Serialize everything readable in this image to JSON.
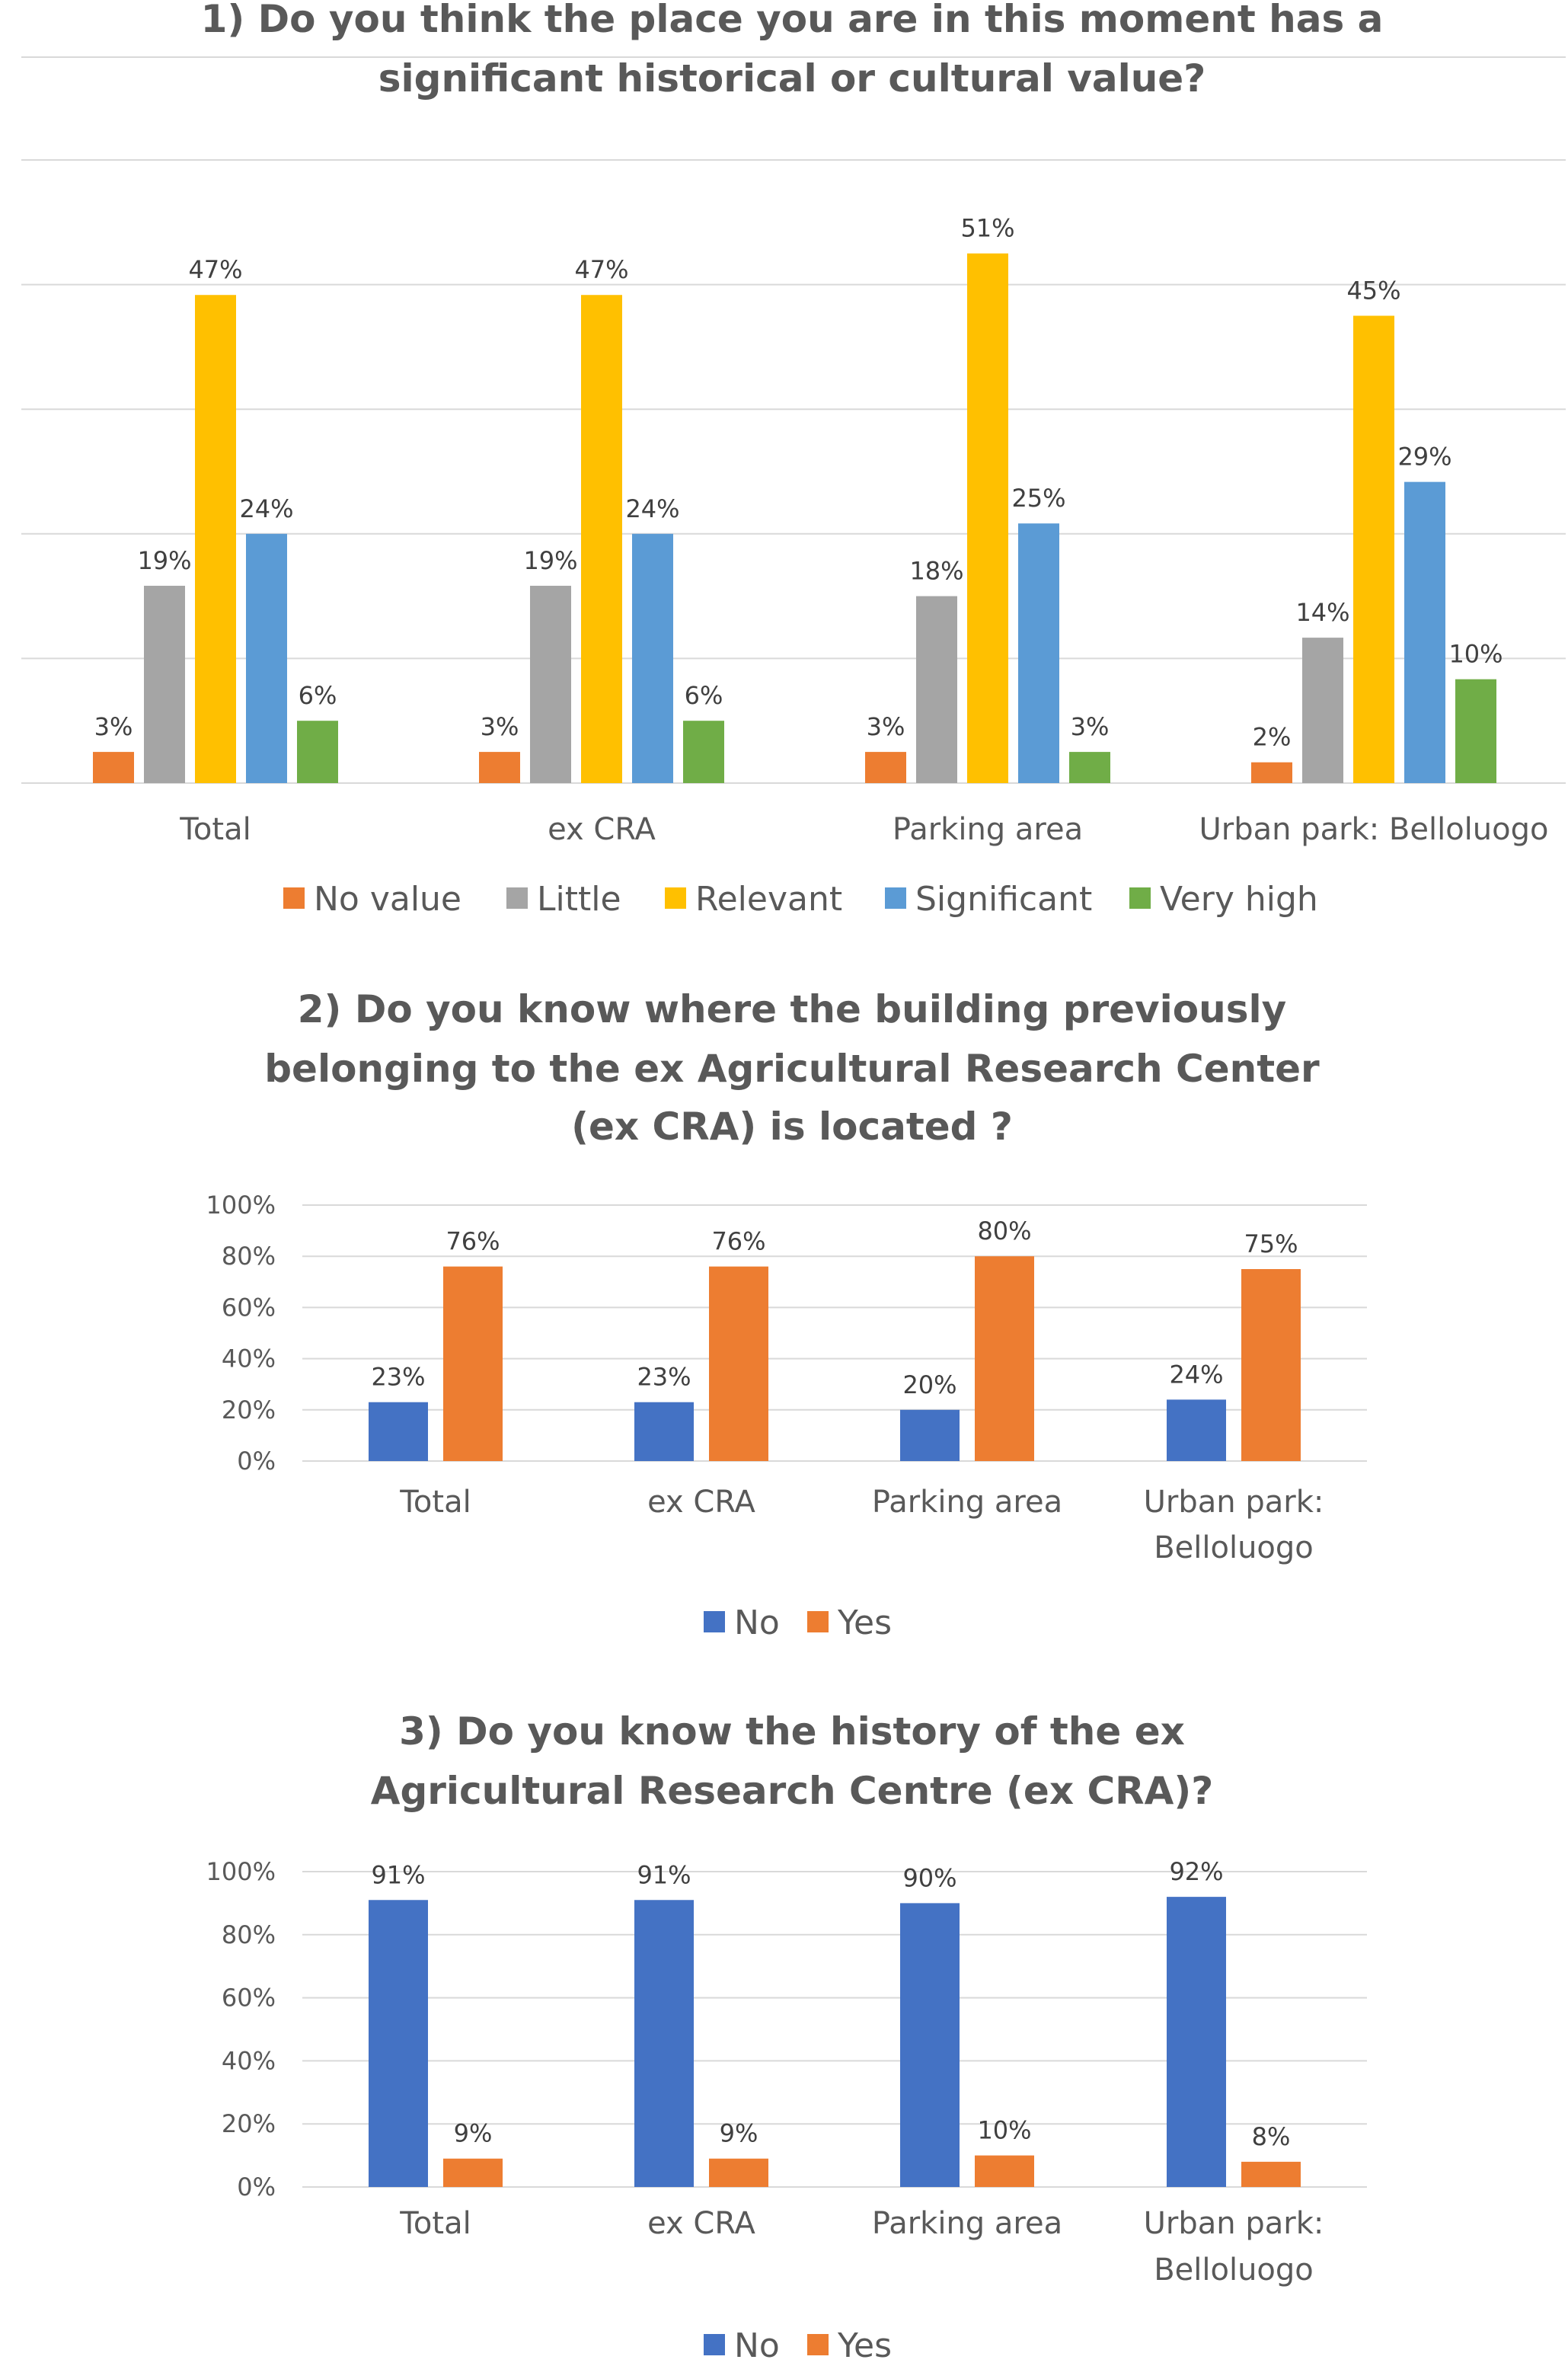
{
  "chart_data": [
    {
      "type": "bar",
      "title": [
        "1) Do you think the place you are in this moment has a",
        "significant historical or cultural value?"
      ],
      "categories": [
        "Total",
        "ex CRA",
        "Parking area",
        "Urban park: Belloluogo"
      ],
      "series": [
        {
          "name": "No value",
          "color": "#ED7D31",
          "values": [
            3,
            3,
            3,
            2
          ],
          "labels": [
            "3%",
            "3%",
            "3%",
            "2%"
          ]
        },
        {
          "name": "Little",
          "color": "#A5A5A5",
          "values": [
            19,
            19,
            18,
            14
          ],
          "labels": [
            "19%",
            "19%",
            "18%",
            "14%"
          ]
        },
        {
          "name": "Relevant",
          "color": "#FFC000",
          "values": [
            47,
            47,
            51,
            45
          ],
          "labels": [
            "47%",
            "47%",
            "51%",
            "45%"
          ]
        },
        {
          "name": "Significant",
          "color": "#5B9BD5",
          "values": [
            24,
            24,
            25,
            29
          ],
          "labels": [
            "24%",
            "24%",
            "25%",
            "29%"
          ]
        },
        {
          "name": "Very high",
          "color": "#70AD47",
          "values": [
            6,
            6,
            3,
            10
          ],
          "labels": [
            "6%",
            "6%",
            "3%",
            "10%"
          ]
        }
      ],
      "ylim": [
        0,
        60
      ],
      "grid": true,
      "show_y_axis_labels": false,
      "legend_position": "bottom"
    },
    {
      "type": "bar",
      "title": [
        "2) Do you know where the building previously",
        "belonging to the ex Agricultural  Research Center",
        "(ex CRA) is located ?"
      ],
      "categories": [
        [
          "Total"
        ],
        [
          "ex CRA"
        ],
        [
          "Parking area"
        ],
        [
          "Urban park:",
          "Belloluogo"
        ]
      ],
      "series": [
        {
          "name": "No",
          "color": "#4472C4",
          "values": [
            23,
            23,
            20,
            24
          ],
          "labels": [
            "23%",
            "23%",
            "20%",
            "24%"
          ]
        },
        {
          "name": "Yes",
          "color": "#ED7D31",
          "values": [
            76,
            76,
            80,
            75
          ],
          "labels": [
            "76%",
            "76%",
            "80%",
            "75%"
          ]
        }
      ],
      "ylim": [
        0,
        100
      ],
      "yticks": [
        "0%",
        "20%",
        "40%",
        "60%",
        "80%",
        "100%"
      ],
      "grid": true,
      "legend_position": "bottom"
    },
    {
      "type": "bar",
      "title": [
        "3) Do you know the history of the ex",
        "Agricultural  Research Centre (ex CRA)?"
      ],
      "categories": [
        [
          "Total"
        ],
        [
          "ex CRA"
        ],
        [
          "Parking area"
        ],
        [
          "Urban park:",
          "Belloluogo"
        ]
      ],
      "series": [
        {
          "name": "No",
          "color": "#4472C4",
          "values": [
            91,
            91,
            90,
            92
          ],
          "labels": [
            "91%",
            "91%",
            "90%",
            "92%"
          ]
        },
        {
          "name": "Yes",
          "color": "#ED7D31",
          "values": [
            9,
            9,
            10,
            8
          ],
          "labels": [
            "9%",
            "9%",
            "10%",
            "8%"
          ]
        }
      ],
      "ylim": [
        0,
        100
      ],
      "yticks": [
        "0%",
        "20%",
        "40%",
        "60%",
        "80%",
        "100%"
      ],
      "grid": true,
      "legend_position": "bottom"
    }
  ]
}
